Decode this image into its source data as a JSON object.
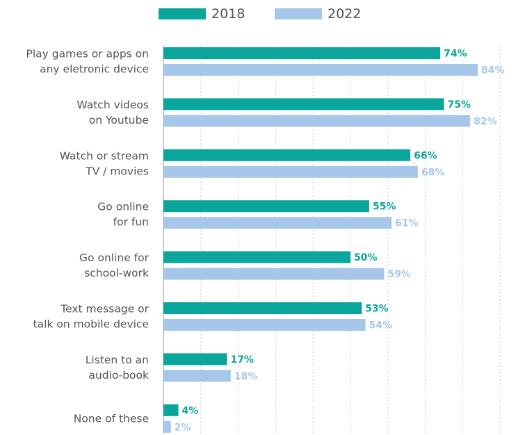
{
  "chart_data": {
    "type": "bar",
    "orientation": "horizontal",
    "categories": [
      [
        "Play games or apps on",
        "any eletronic device"
      ],
      [
        "Watch videos",
        "on Youtube"
      ],
      [
        "Watch or stream",
        "TV / movies"
      ],
      [
        "Go online",
        "for fun"
      ],
      [
        "Go online for",
        "school-work"
      ],
      [
        "Text message or",
        "talk on mobile device"
      ],
      [
        "Listen to an",
        "audio-book"
      ],
      [
        "None of these"
      ]
    ],
    "series": [
      {
        "name": "2018",
        "color": "#0aa59b",
        "values": [
          74,
          75,
          66,
          55,
          50,
          53,
          17,
          4
        ]
      },
      {
        "name": "2022",
        "color": "#a7c7ea",
        "values": [
          84,
          82,
          68,
          61,
          59,
          54,
          18,
          2
        ]
      }
    ],
    "value_suffix": "%",
    "xlim": [
      0,
      100
    ],
    "grid": "vertical dotted",
    "legend_position": "top"
  }
}
